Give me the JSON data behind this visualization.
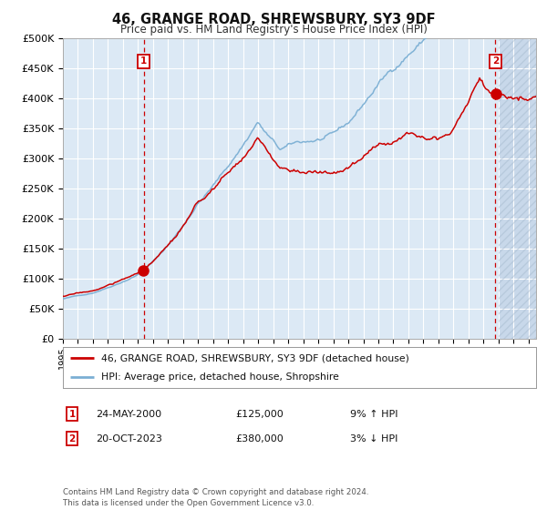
{
  "title": "46, GRANGE ROAD, SHREWSBURY, SY3 9DF",
  "subtitle": "Price paid vs. HM Land Registry's House Price Index (HPI)",
  "bg_color": "#dce9f5",
  "hatch_color": "#c8d8ea",
  "grid_color": "#ffffff",
  "red_line_color": "#cc0000",
  "blue_line_color": "#7bafd4",
  "vline_color": "#cc0000",
  "marker_color": "#cc0000",
  "anno_box_color": "#cc0000",
  "legend_line1": "46, GRANGE ROAD, SHREWSBURY, SY3 9DF (detached house)",
  "legend_line2": "HPI: Average price, detached house, Shropshire",
  "sale1_date": "24-MAY-2000",
  "sale1_price": "£125,000",
  "sale1_hpi": "9% ↑ HPI",
  "sale1_year": 2000.38,
  "sale1_value": 125000,
  "sale2_date": "20-OCT-2023",
  "sale2_price": "£380,000",
  "sale2_hpi": "3% ↓ HPI",
  "sale2_year": 2023.79,
  "sale2_value": 380000,
  "footer": "Contains HM Land Registry data © Crown copyright and database right 2024.\nThis data is licensed under the Open Government Licence v3.0.",
  "ylim": [
    0,
    500000
  ],
  "yticks": [
    0,
    50000,
    100000,
    150000,
    200000,
    250000,
    300000,
    350000,
    400000,
    450000,
    500000
  ],
  "xmin": 1995.0,
  "xmax": 2026.5,
  "hatch_start": 2024.0
}
